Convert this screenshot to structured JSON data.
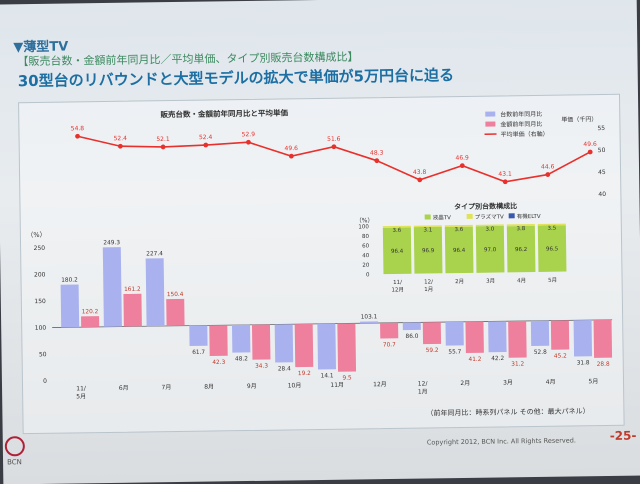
{
  "slide": {
    "section": "▼薄型TV",
    "subtitle": "【販売台数・金額前年同月比／平均単価、タイプ別販売台数構成比】",
    "headline": "30型台のリバウンドと大型モデルの拡大で単価が5万円台に迫る",
    "note": "（前年同月比：時系列パネル  その他：最大パネル）",
    "copyright": "Copyright 2012, BCN Inc. All Rights Reserved.",
    "page": "-25-",
    "logo_text": "BCN"
  },
  "colors": {
    "units": "#a9b2ee",
    "amount": "#ee7f9d",
    "price": "#e8302c",
    "lcd": "#a9d24d",
    "plasma": "#e0e35a",
    "oled": "#3a57b0"
  },
  "chart_data": [
    {
      "type": "line",
      "title": "販売台数・金額前年同月比と平均単価",
      "series_name": "平均単価（右軸）",
      "ylabel": "単価（千円）",
      "ylim": [
        40,
        55
      ],
      "yticks": [
        "55",
        "50",
        "45",
        "40"
      ],
      "values": [
        54.8,
        52.4,
        52.1,
        52.4,
        52.9,
        49.6,
        51.6,
        48.3,
        43.8,
        46.9,
        43.1,
        44.6,
        49.6
      ]
    },
    {
      "type": "bar",
      "categories": [
        "11/\n5月",
        "6月",
        "7月",
        "8月",
        "9月",
        "10月",
        "11月",
        "12月",
        "12/\n1月",
        "2月",
        "3月",
        "4月",
        "5月"
      ],
      "ylabel": "（%）",
      "ylim": [
        0,
        250
      ],
      "yticks": [
        "250",
        "200",
        "150",
        "100",
        "50",
        "0"
      ],
      "series": [
        {
          "name": "台数前年同月比",
          "values": [
            180.2,
            249.3,
            227.4,
            61.7,
            48.2,
            28.4,
            14.1,
            103.1,
            86.0,
            55.7,
            42.2,
            52.8,
            31.8
          ],
          "labels": [
            "180.2",
            "249.3",
            "227.4",
            "61.7",
            "48.2",
            "28.4",
            "14.1",
            "103.1",
            "86.0",
            "55.7",
            "42.2",
            "52.8",
            "31.8"
          ]
        },
        {
          "name": "金額前年同月比",
          "values": [
            120.2,
            161.2,
            150.4,
            42.3,
            34.3,
            19.2,
            9.5,
            70.7,
            59.2,
            41.2,
            31.2,
            45.2,
            28.8
          ],
          "labels": [
            "120.2",
            "161.2",
            "150.4",
            "42.3",
            "34.3",
            "19.2",
            "9.5",
            "70.7",
            "59.2",
            "41.2",
            "31.2",
            "45.2",
            "28.8"
          ]
        }
      ]
    },
    {
      "type": "bar",
      "title": "タイプ別台数構成比",
      "ylabel": "（%）",
      "ylim": [
        0,
        100
      ],
      "yticks": [
        "100",
        "80",
        "60",
        "40",
        "20",
        "0"
      ],
      "categories": [
        "11/\n12月",
        "12/\n1月",
        "2月",
        "3月",
        "4月",
        "5月"
      ],
      "series": [
        {
          "name": "液晶TV",
          "values": [
            96.4,
            96.9,
            96.4,
            97.0,
            96.2,
            96.5
          ],
          "labels": [
            "96.4",
            "96.9",
            "96.4",
            "97.0",
            "96.2",
            "96.5"
          ]
        },
        {
          "name": "プラズマTV",
          "values": [
            3.6,
            3.1,
            3.6,
            3.0,
            3.8,
            3.5
          ],
          "labels": [
            "3.6",
            "3.1",
            "3.6",
            "3.0",
            "3.8",
            "3.5"
          ]
        },
        {
          "name": "有機ELTV",
          "values": [
            0,
            0,
            0,
            0,
            0,
            0
          ]
        }
      ]
    }
  ]
}
